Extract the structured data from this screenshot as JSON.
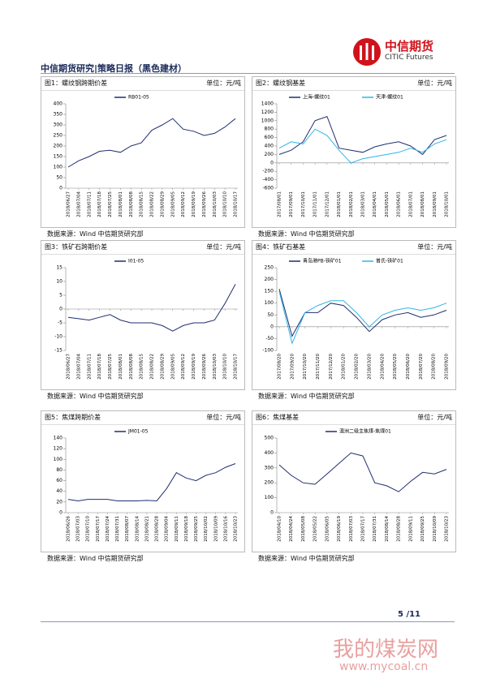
{
  "header": {
    "title": "中信期货研究|策略日报（黑色建材）",
    "logo_cn": "中信期货",
    "logo_en": "CITIC Futures"
  },
  "chart_data": [
    {
      "type": "line",
      "title": "图1：螺纹钢跨期价差",
      "unit": "单位：元/吨",
      "source": "数据来源：Wind  中信期货研究部",
      "categories": [
        "2018/06/27",
        "2018/07/04",
        "2018/07/11",
        "2018/07/18",
        "2018/07/25",
        "2018/08/01",
        "2018/08/08",
        "2018/08/15",
        "2018/08/22",
        "2018/08/29",
        "2018/09/05",
        "2018/09/12",
        "2018/09/19",
        "2018/09/26",
        "2018/10/03",
        "2018/10/10",
        "2018/10/17"
      ],
      "series": [
        {
          "name": "RB01-05",
          "color": "#1f2f6e",
          "values": [
            100,
            130,
            150,
            175,
            180,
            170,
            200,
            215,
            275,
            300,
            330,
            280,
            270,
            250,
            260,
            290,
            330
          ]
        }
      ],
      "ylim": [
        0,
        400
      ],
      "yticks": [
        0,
        50,
        100,
        150,
        200,
        250,
        300,
        350,
        400
      ]
    },
    {
      "type": "line",
      "title": "图2：螺纹钢基差",
      "unit": "单位：元/吨",
      "source": "数据来源：Wind  中信期货研究部",
      "categories": [
        "2017/08/01",
        "2017/09/01",
        "2017/10/01",
        "2017/11/01",
        "2017/12/01",
        "2018/01/01",
        "2018/02/01",
        "2018/03/01",
        "2018/04/01",
        "2018/05/01",
        "2018/06/01",
        "2018/07/01",
        "2018/08/01",
        "2018/09/01",
        "2018/10/01"
      ],
      "series": [
        {
          "name": "上海-螺纹01",
          "color": "#1f2f6e",
          "values": [
            200,
            300,
            500,
            1000,
            1100,
            350,
            300,
            250,
            380,
            450,
            500,
            400,
            200,
            550,
            650
          ]
        },
        {
          "name": "天津-螺纹01",
          "color": "#2fb5e6",
          "values": [
            350,
            500,
            450,
            800,
            650,
            300,
            0,
            100,
            150,
            200,
            250,
            350,
            250,
            450,
            550
          ]
        }
      ],
      "ylim": [
        -600,
        1400
      ],
      "yticks": [
        -600,
        -400,
        -200,
        0,
        200,
        400,
        600,
        800,
        1000,
        1200,
        1400
      ]
    },
    {
      "type": "line",
      "title": "图3：铁矿石跨期价差",
      "unit": "单位：元/吨",
      "source": "数据来源：Wind  中信期货研究部",
      "categories": [
        "2018/06/27",
        "2018/07/04",
        "2018/07/11",
        "2018/07/18",
        "2018/07/25",
        "2018/08/01",
        "2018/08/08",
        "2018/08/15",
        "2018/08/22",
        "2018/08/29",
        "2018/09/05",
        "2018/09/12",
        "2018/09/19",
        "2018/09/26",
        "2018/10/03",
        "2018/10/10",
        "2018/10/17"
      ],
      "series": [
        {
          "name": "I01-05",
          "color": "#1f2f6e",
          "values": [
            -3,
            -3.5,
            -4,
            -3,
            -2,
            -4,
            -5,
            -5,
            -5,
            -6,
            -8,
            -6,
            -5,
            -5,
            -4,
            2,
            9
          ]
        }
      ],
      "ylim": [
        -15,
        15
      ],
      "yticks": [
        -15,
        -10,
        -5,
        0,
        5,
        10,
        15
      ]
    },
    {
      "type": "line",
      "title": "图4：铁矿石基差",
      "unit": "单位：元/吨",
      "source": "数据来源：Wind  中信期货研究部",
      "categories": [
        "2017/08/20",
        "2017/09/20",
        "2017/10/20",
        "2017/11/20",
        "2017/12/20",
        "2018/01/20",
        "2018/02/20",
        "2018/03/20",
        "2018/04/20",
        "2018/05/20",
        "2018/06/20",
        "2018/07/20",
        "2018/08/20",
        "2018/09/20"
      ],
      "series": [
        {
          "name": "青岛港PB-铁矿01",
          "color": "#1f2f6e",
          "values": [
            160,
            -40,
            60,
            60,
            100,
            90,
            40,
            -20,
            30,
            50,
            60,
            40,
            50,
            70
          ]
        },
        {
          "name": "普氏-铁矿01",
          "color": "#2fb5e6",
          "values": [
            150,
            -70,
            60,
            90,
            110,
            110,
            60,
            0,
            50,
            70,
            80,
            70,
            80,
            100
          ]
        }
      ],
      "ylim": [
        -100,
        250
      ],
      "yticks": [
        -100,
        -50,
        0,
        50,
        100,
        150,
        200,
        250
      ]
    },
    {
      "type": "line",
      "title": "图5：焦煤跨期价差",
      "unit": "单位：元/吨",
      "source": "数据来源：Wind  中信期货研究部",
      "categories": [
        "2018/06/26",
        "2018/07/03",
        "2018/07/10",
        "2018/07/17",
        "2018/07/24",
        "2018/07/31",
        "2018/08/07",
        "2018/08/14",
        "2018/08/21",
        "2018/08/28",
        "2018/09/04",
        "2018/09/11",
        "2018/09/18",
        "2018/09/25",
        "2018/10/02",
        "2018/10/09",
        "2018/10/16",
        "2018/10/23"
      ],
      "series": [
        {
          "name": "JM01-05",
          "color": "#1f2f6e",
          "values": [
            25,
            22,
            25,
            25,
            25,
            22,
            22,
            22,
            23,
            22,
            45,
            75,
            65,
            60,
            70,
            75,
            85,
            92
          ]
        }
      ],
      "ylim": [
        0,
        140
      ],
      "yticks": [
        0,
        20,
        40,
        60,
        80,
        100,
        120,
        140
      ]
    },
    {
      "type": "line",
      "title": "图6：焦煤基差",
      "unit": "单位：元/吨",
      "source": "数据来源：Wind  中信期货研究部",
      "categories": [
        "2018/04/10",
        "2018/04/24",
        "2018/05/08",
        "2018/05/22",
        "2018/06/05",
        "2018/06/19",
        "2018/07/03",
        "2018/07/17",
        "2018/07/31",
        "2018/08/14",
        "2018/08/28",
        "2018/09/11",
        "2018/09/25",
        "2018/10/09",
        "2018/10/23"
      ],
      "series": [
        {
          "name": "澳洲二级主焦煤-焦煤01",
          "color": "#1f2f6e",
          "values": [
            320,
            250,
            200,
            190,
            260,
            330,
            400,
            380,
            200,
            180,
            140,
            210,
            270,
            260,
            290
          ]
        }
      ],
      "ylim": [
        0,
        500
      ],
      "yticks": [
        0,
        100,
        200,
        300,
        400,
        500
      ]
    }
  ],
  "footer": {
    "page": "5 /11"
  },
  "watermark": {
    "name": "我的煤炭网",
    "url": "www.mycoal.cn"
  }
}
